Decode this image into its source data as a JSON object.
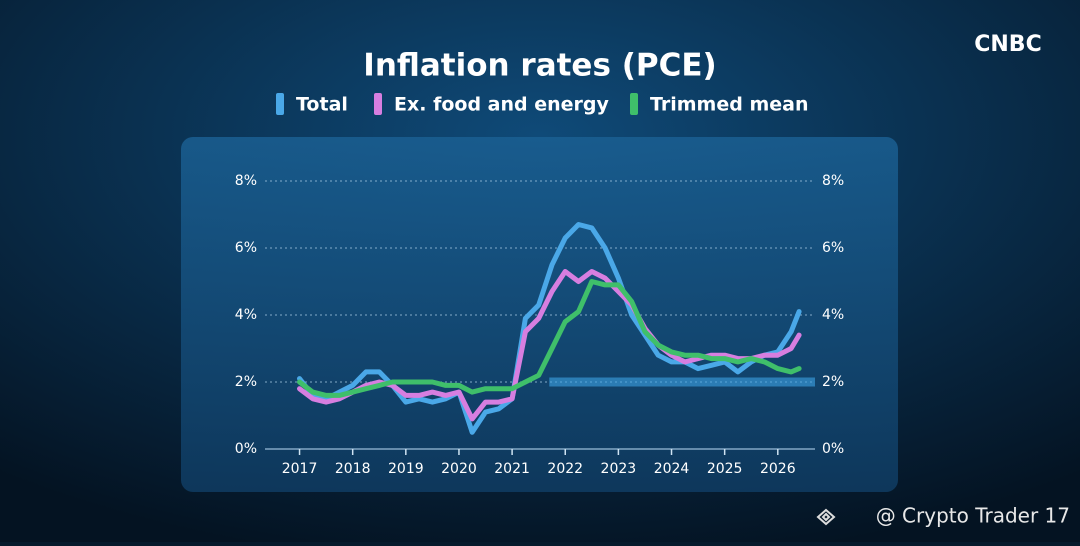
{
  "chart_data": {
    "type": "line",
    "title": "Inflation rates (PCE)",
    "x": [
      2017.0,
      2017.25,
      2017.5,
      2017.75,
      2018.0,
      2018.25,
      2018.5,
      2018.75,
      2019.0,
      2019.25,
      2019.5,
      2019.75,
      2020.0,
      2020.25,
      2020.5,
      2020.75,
      2021.0,
      2021.25,
      2021.5,
      2021.75,
      2022.0,
      2022.25,
      2022.5,
      2022.75,
      2023.0,
      2023.25,
      2023.5,
      2023.75,
      2024.0,
      2024.25,
      2024.5,
      2024.75,
      2025.0,
      2025.25,
      2025.5,
      2025.75,
      2026.0,
      2026.25,
      2026.4
    ],
    "series": [
      {
        "name": "Total",
        "color": "#4aa8e8",
        "values": [
          2.1,
          1.6,
          1.5,
          1.7,
          1.9,
          2.3,
          2.3,
          1.9,
          1.4,
          1.5,
          1.4,
          1.5,
          1.7,
          0.5,
          1.1,
          1.2,
          1.5,
          3.9,
          4.3,
          5.5,
          6.3,
          6.7,
          6.6,
          6.0,
          5.1,
          4.0,
          3.4,
          2.8,
          2.6,
          2.6,
          2.4,
          2.5,
          2.6,
          2.3,
          2.6,
          2.8,
          2.9,
          3.5,
          4.1
        ]
      },
      {
        "name": "Ex. food and energy",
        "color": "#d77ee0",
        "values": [
          1.8,
          1.5,
          1.4,
          1.5,
          1.7,
          1.9,
          2.0,
          1.9,
          1.6,
          1.6,
          1.7,
          1.6,
          1.7,
          0.9,
          1.4,
          1.4,
          1.5,
          3.5,
          3.9,
          4.7,
          5.3,
          5.0,
          5.3,
          5.1,
          4.7,
          4.3,
          3.6,
          3.1,
          2.8,
          2.6,
          2.7,
          2.8,
          2.8,
          2.7,
          2.7,
          2.8,
          2.8,
          3.0,
          3.4
        ]
      },
      {
        "name": "Trimmed mean",
        "color": "#3fbf6a",
        "values": [
          2.0,
          1.7,
          1.6,
          1.6,
          1.7,
          1.8,
          1.9,
          2.0,
          2.0,
          2.0,
          2.0,
          1.9,
          1.9,
          1.7,
          1.8,
          1.8,
          1.8,
          2.0,
          2.2,
          3.0,
          3.8,
          4.1,
          5.0,
          4.9,
          4.9,
          4.4,
          3.5,
          3.1,
          2.9,
          2.8,
          2.8,
          2.7,
          2.7,
          2.6,
          2.7,
          2.6,
          2.4,
          2.3,
          2.4
        ]
      }
    ],
    "xlim": [
      2016.35,
      2026.7
    ],
    "xticks": [
      2017,
      2018,
      2019,
      2020,
      2021,
      2022,
      2023,
      2024,
      2025,
      2026
    ],
    "ylim": [
      0,
      8
    ],
    "yticks": [
      {
        "value": 0,
        "label": "0%"
      },
      {
        "value": 2,
        "label": "2%"
      },
      {
        "value": 4,
        "label": "4%"
      },
      {
        "value": 6,
        "label": "6%"
      },
      {
        "value": 8,
        "label": "8%"
      }
    ],
    "grid": true,
    "highlight": {
      "y": 2,
      "x_start": 2021.7
    }
  },
  "logo": "CNBC",
  "watermark": "@ Crypto Trader 17"
}
